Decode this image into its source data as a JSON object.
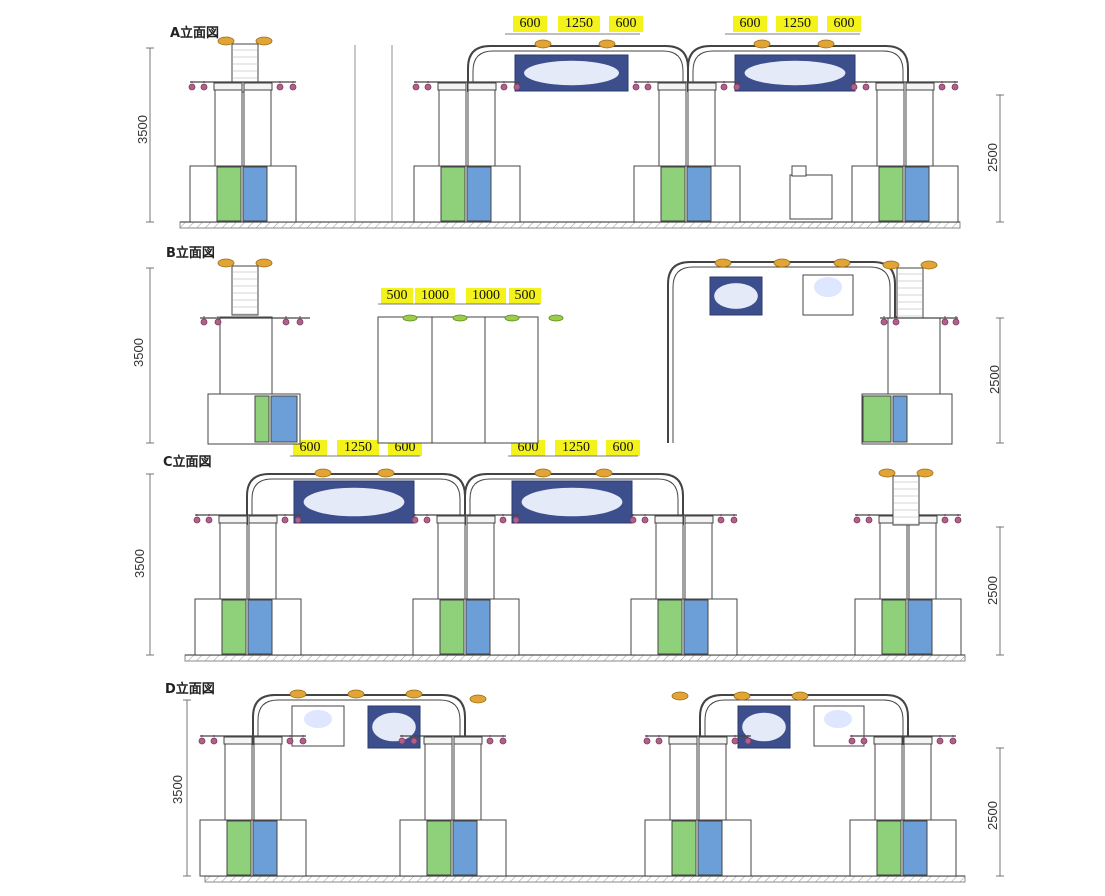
{
  "elevations": [
    {
      "label": "A立面図",
      "total_height": "3500",
      "booth_height": "2500",
      "spans": [
        {
          "a": "600",
          "b": "1250",
          "c": "600"
        },
        {
          "a": "600",
          "b": "1250",
          "c": "600"
        }
      ]
    },
    {
      "label": "B立面図",
      "total_height": "3500",
      "booth_height": "2500",
      "spans": [
        {
          "a": "500",
          "b": "1000",
          "c": "1000",
          "d": "500"
        }
      ]
    },
    {
      "label": "C立面図",
      "total_height": "3500",
      "booth_height": "2500",
      "spans": [
        {
          "a": "600",
          "b": "1250",
          "c": "600"
        },
        {
          "a": "600",
          "b": "1250",
          "c": "600"
        }
      ]
    },
    {
      "label": "D立面図",
      "total_height": "3500",
      "booth_height": "2500"
    }
  ],
  "colors": {
    "green": "#8fd07a",
    "blue": "#6c9fd8",
    "sign": "#3c4f8c",
    "lamp": "#b0608a",
    "light": "#e0a536",
    "line": "#444444",
    "highlight": "#f3f21a"
  }
}
